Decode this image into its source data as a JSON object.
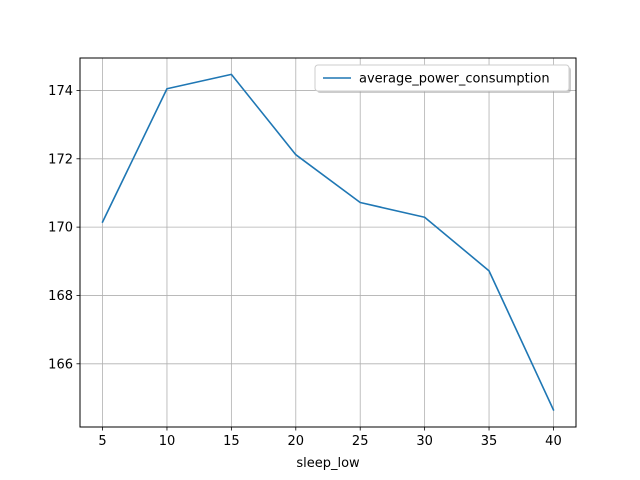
{
  "chart_data": {
    "type": "line",
    "xlabel": "sleep_low",
    "ylabel": "",
    "x": [
      5,
      10,
      15,
      20,
      25,
      30,
      35,
      40
    ],
    "xticks": [
      5,
      10,
      15,
      20,
      25,
      30,
      35,
      40
    ],
    "yticks": [
      166,
      168,
      170,
      172,
      174
    ],
    "xlim": [
      3.25,
      41.75
    ],
    "ylim": [
      164.15,
      174.95
    ],
    "grid": true,
    "legend_position": "upper-right",
    "series": [
      {
        "name": "average_power_consumption",
        "color": "#1f77b4",
        "values": [
          170.15,
          174.05,
          174.47,
          172.12,
          170.72,
          170.29,
          168.72,
          164.65
        ]
      }
    ]
  }
}
